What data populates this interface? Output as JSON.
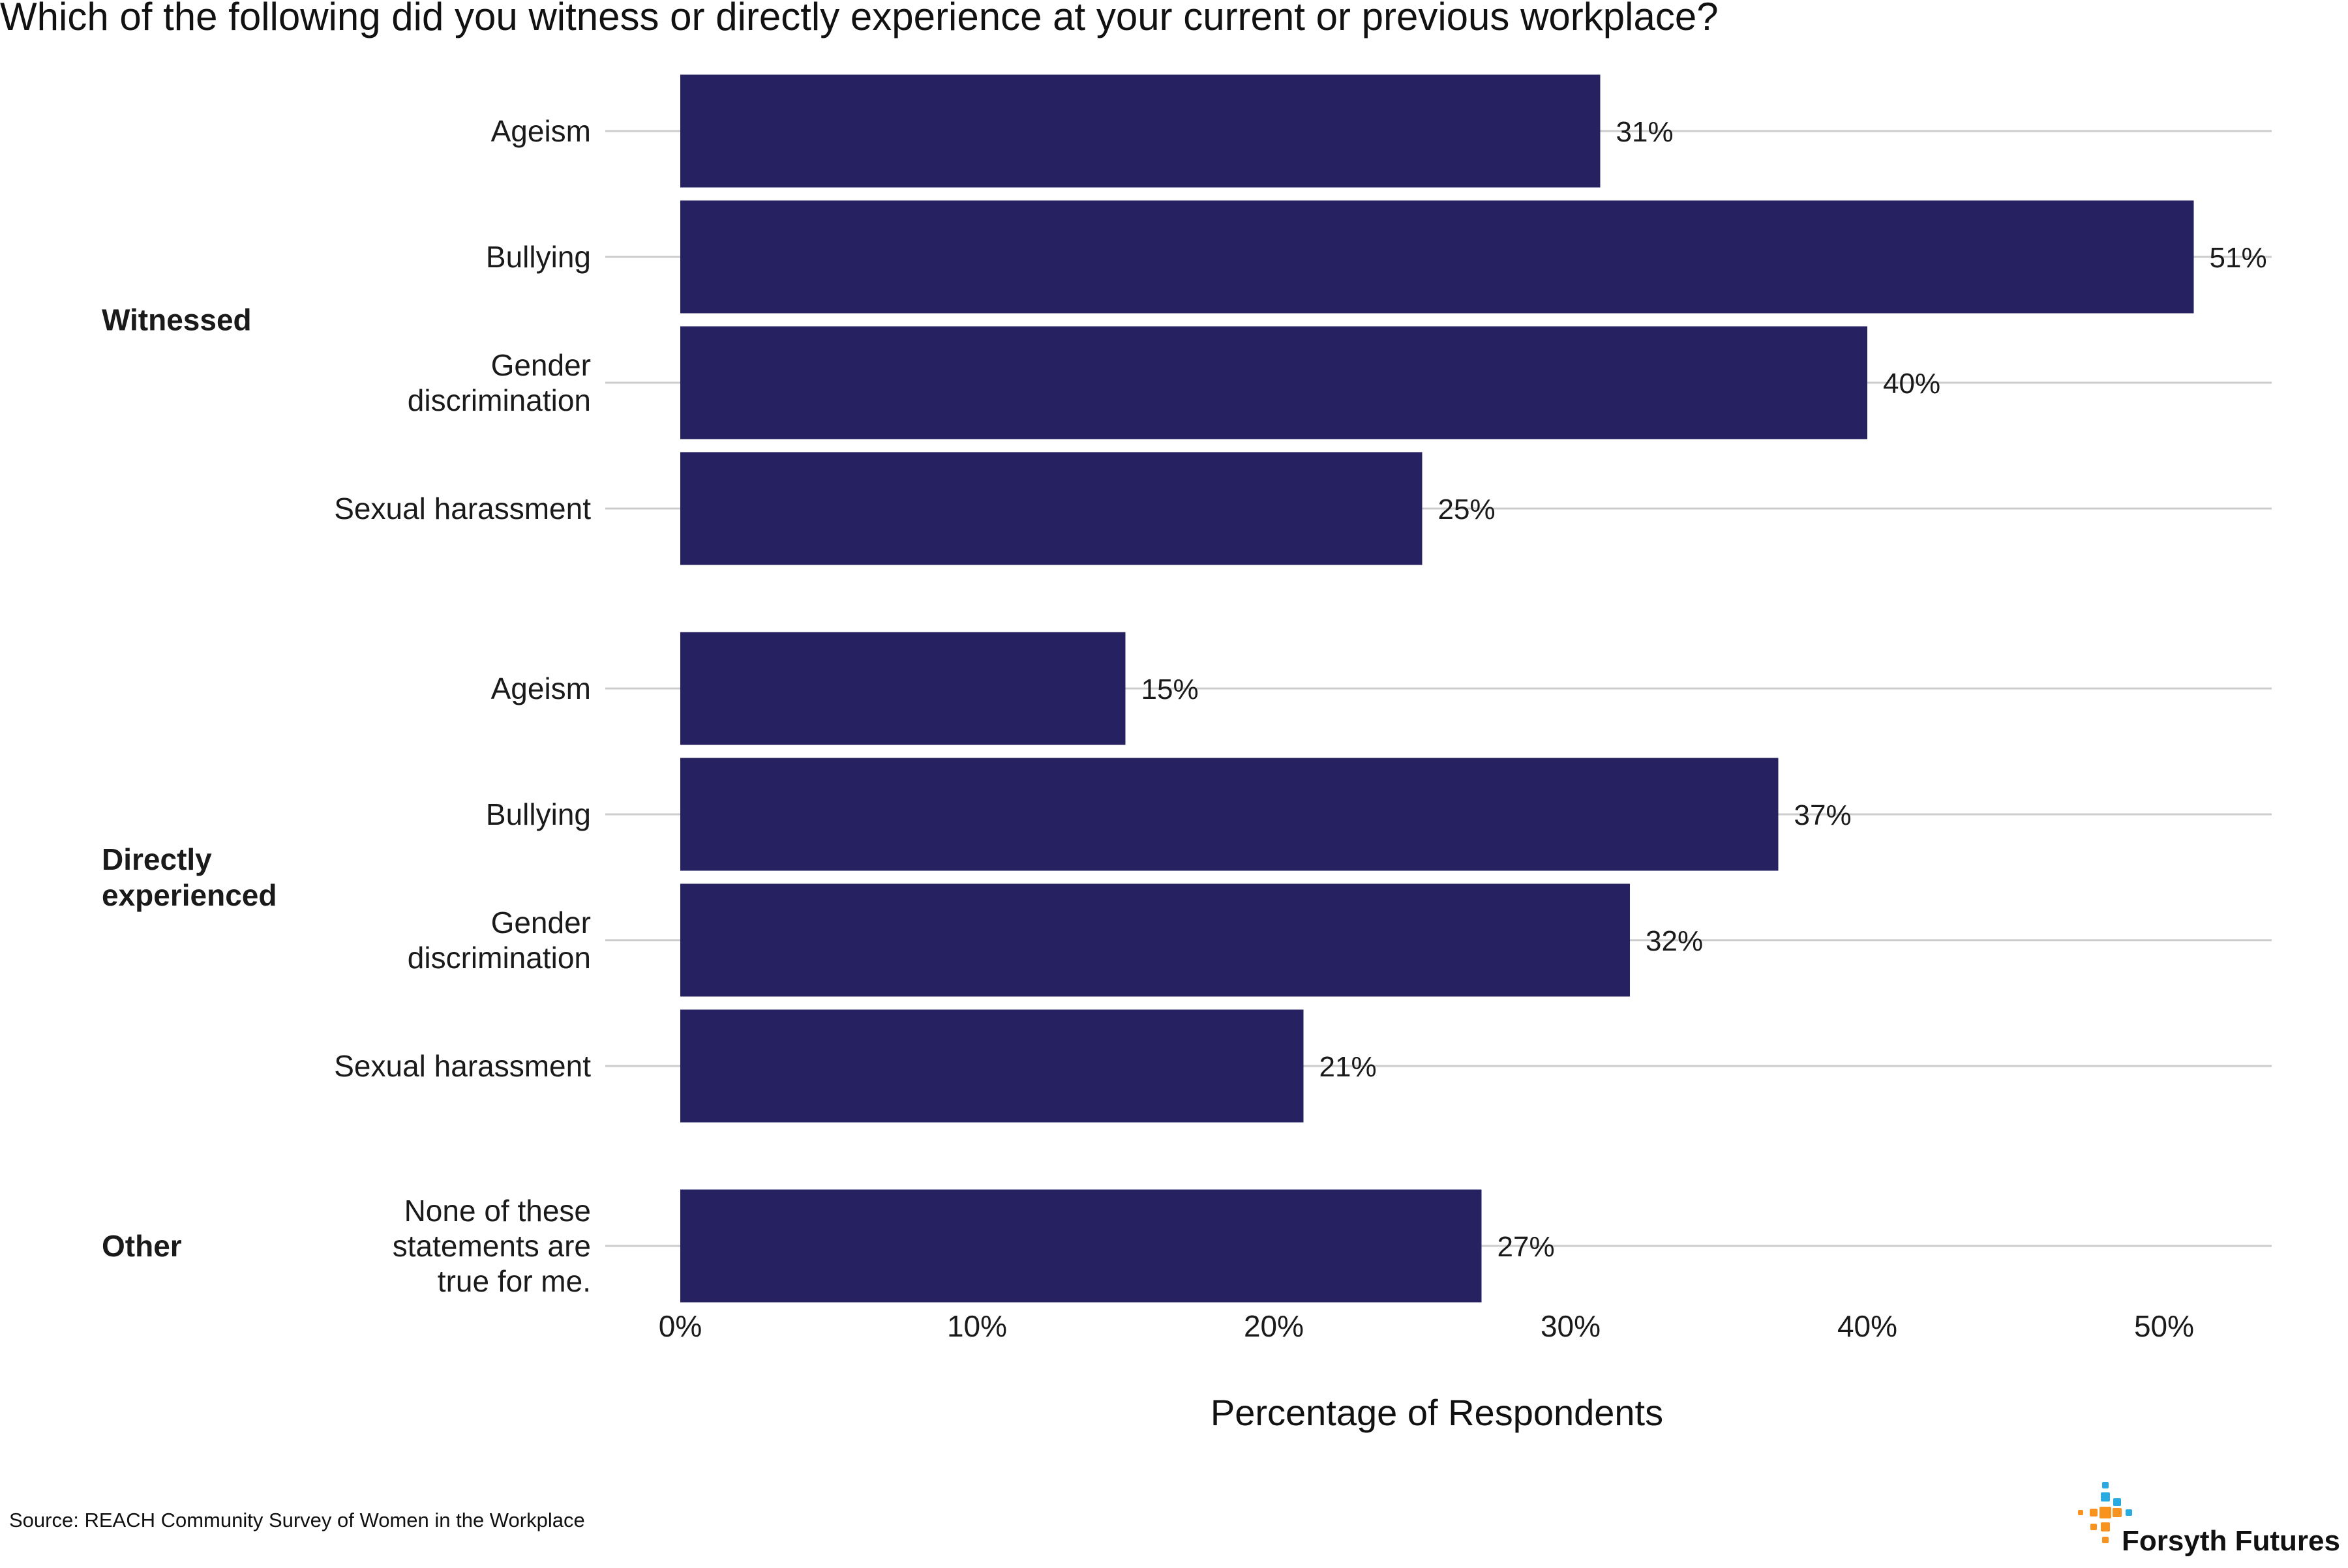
{
  "chart_data": {
    "type": "bar",
    "orientation": "horizontal",
    "title": "Which of the following did you witness or directly experience at your current or previous workplace?",
    "xlabel": "Percentage of Respondents",
    "ylabel": "",
    "xlim": [
      0,
      54
    ],
    "x_ticks": [
      0,
      10,
      20,
      30,
      40,
      50
    ],
    "x_tick_labels": [
      "0%",
      "10%",
      "20%",
      "30%",
      "40%",
      "50%"
    ],
    "grid": "horizontal lines at each category",
    "legend": "none",
    "bar_color": "#262262",
    "groups": [
      {
        "name": "Witnessed",
        "bars": [
          {
            "category": "Ageism",
            "value": 31,
            "label": "31%"
          },
          {
            "category": "Bullying",
            "value": 51,
            "label": "51%"
          },
          {
            "category": "Gender discrimination",
            "value": 40,
            "label": "40%"
          },
          {
            "category": "Sexual harassment",
            "value": 25,
            "label": "25%"
          }
        ]
      },
      {
        "name": "Directly experienced",
        "bars": [
          {
            "category": "Ageism",
            "value": 15,
            "label": "15%"
          },
          {
            "category": "Bullying",
            "value": 37,
            "label": "37%"
          },
          {
            "category": "Gender discrimination",
            "value": 32,
            "label": "32%"
          },
          {
            "category": "Sexual harassment",
            "value": 21,
            "label": "21%"
          }
        ]
      },
      {
        "name": "Other",
        "bars": [
          {
            "category": "None of these statements are true for me.",
            "value": 27,
            "label": "27%"
          }
        ]
      }
    ]
  },
  "category_label_lines": {
    "Ageism": [
      "Ageism"
    ],
    "Bullying": [
      "Bullying"
    ],
    "Gender discrimination": [
      "Gender",
      "discrimination"
    ],
    "Sexual harassment": [
      "Sexual harassment"
    ],
    "None of these statements are true for me.": [
      "None of these",
      "statements are",
      "true for me."
    ]
  },
  "group_label_lines": {
    "Witnessed": [
      "Witnessed"
    ],
    "Directly experienced": [
      "Directly",
      "experienced"
    ],
    "Other": [
      "Other"
    ]
  },
  "footer": {
    "source": "Source: REACH Community Survey of Women in the Workplace",
    "logo_text": "Forsyth Futures",
    "logo_colors": [
      "#29abe2",
      "#f7931e"
    ]
  }
}
